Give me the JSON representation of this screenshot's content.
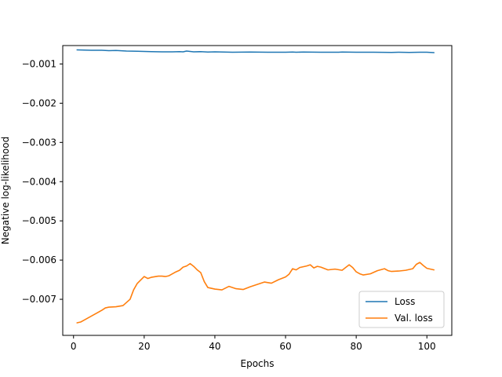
{
  "chart_data": {
    "type": "line",
    "title": "",
    "xlabel": "Epochs",
    "ylabel": "Negative log-likelihood",
    "xlim": [
      -3.05,
      107.05
    ],
    "ylim": [
      -0.00792,
      -0.00053
    ],
    "xticks": [
      0,
      20,
      40,
      60,
      80,
      100
    ],
    "xtick_labels": [
      "0",
      "20",
      "40",
      "60",
      "80",
      "100"
    ],
    "yticks": [
      -0.001,
      -0.002,
      -0.003,
      -0.004,
      -0.005,
      -0.006,
      -0.007
    ],
    "ytick_labels": [
      "−0.001",
      "−0.002",
      "−0.003",
      "−0.004",
      "−0.005",
      "−0.006",
      "−0.007"
    ],
    "grid": false,
    "legend_position": "lower-right",
    "series": [
      {
        "name": "Loss",
        "color": "#1f77b4",
        "x": [
          1,
          3,
          5,
          8,
          10,
          12,
          15,
          18,
          20,
          22,
          25,
          28,
          30,
          31,
          32,
          34,
          36,
          38,
          40,
          45,
          50,
          55,
          60,
          62,
          63,
          65,
          70,
          75,
          76,
          80,
          85,
          90,
          92,
          95,
          98,
          100,
          102
        ],
        "y": [
          -0.00064,
          -0.000645,
          -0.00065,
          -0.00065,
          -0.00066,
          -0.000655,
          -0.00067,
          -0.000675,
          -0.00068,
          -0.000685,
          -0.00069,
          -0.00069,
          -0.000685,
          -0.00069,
          -0.00067,
          -0.00069,
          -0.000685,
          -0.000695,
          -0.00069,
          -0.0007,
          -0.000695,
          -0.0007,
          -0.0007,
          -0.000695,
          -0.0007,
          -0.000695,
          -0.0007,
          -0.0007,
          -0.000695,
          -0.0007,
          -0.0007,
          -0.000705,
          -0.0007,
          -0.000705,
          -0.0007,
          -0.0007,
          -0.00071
        ]
      },
      {
        "name": "Val. loss",
        "color": "#ff7f0e",
        "x": [
          1,
          2,
          4,
          6,
          8,
          9,
          10,
          12,
          14,
          16,
          17,
          18,
          20,
          21,
          22,
          24,
          25,
          26,
          27,
          28,
          29,
          30,
          31,
          32,
          33,
          34,
          35,
          36,
          37,
          38,
          40,
          42,
          44,
          46,
          48,
          50,
          52,
          54,
          56,
          58,
          60,
          61,
          62,
          63,
          64,
          66,
          67,
          68,
          69,
          70,
          72,
          74,
          76,
          78,
          79,
          80,
          81,
          82,
          84,
          86,
          88,
          89,
          90,
          92,
          94,
          96,
          97,
          98,
          99,
          100,
          102
        ],
        "y": [
          -0.0076,
          -0.00758,
          -0.00748,
          -0.00738,
          -0.00728,
          -0.00722,
          -0.0072,
          -0.00719,
          -0.00716,
          -0.007,
          -0.00676,
          -0.0066,
          -0.00642,
          -0.00647,
          -0.00644,
          -0.00641,
          -0.00641,
          -0.00642,
          -0.0064,
          -0.00635,
          -0.0063,
          -0.00626,
          -0.00618,
          -0.00615,
          -0.00609,
          -0.00616,
          -0.00625,
          -0.00632,
          -0.00655,
          -0.0067,
          -0.00674,
          -0.00676,
          -0.00667,
          -0.00673,
          -0.00675,
          -0.00668,
          -0.00662,
          -0.00656,
          -0.00659,
          -0.0065,
          -0.00643,
          -0.00636,
          -0.00622,
          -0.00625,
          -0.00619,
          -0.00615,
          -0.00612,
          -0.0062,
          -0.00616,
          -0.00618,
          -0.00625,
          -0.00623,
          -0.00626,
          -0.00612,
          -0.00619,
          -0.0063,
          -0.00635,
          -0.00638,
          -0.00635,
          -0.00627,
          -0.00622,
          -0.00627,
          -0.00629,
          -0.00628,
          -0.00626,
          -0.00622,
          -0.00611,
          -0.00606,
          -0.00614,
          -0.00621,
          -0.00625
        ]
      }
    ]
  }
}
